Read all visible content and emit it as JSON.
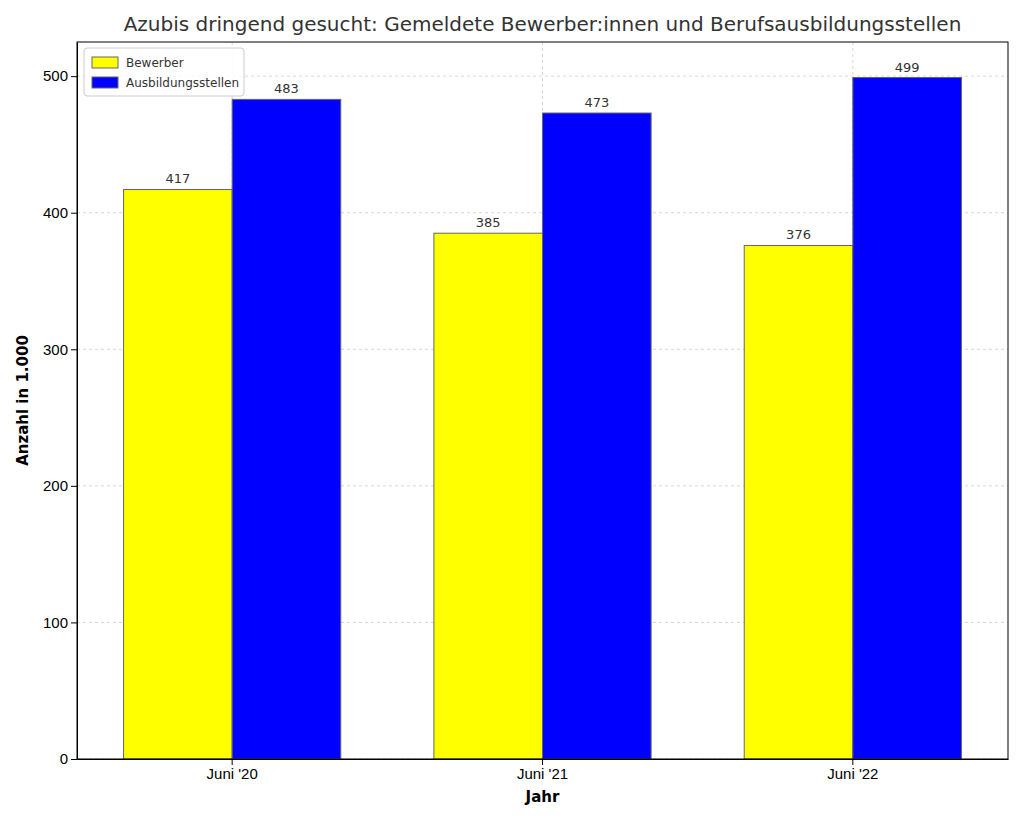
{
  "chart_data": {
    "type": "bar",
    "title": "Azubis dringend gesucht: Gemeldete Bewerber:innen und Berufsausbildungsstellen",
    "x_label": "Jahr",
    "y_label": "Anzahl in 1.000",
    "categories": [
      "Juni '20",
      "Juni '21",
      "Juni '22"
    ],
    "series": [
      {
        "name": "Bewerber",
        "color": "#ffff00",
        "values": [
          417,
          385,
          376
        ]
      },
      {
        "name": "Ausbildungsstellen",
        "color": "#0000ff",
        "values": [
          483,
          473,
          499
        ]
      }
    ],
    "ylim": [
      0,
      525
    ],
    "yticks": [
      0,
      100,
      200,
      300,
      400,
      500
    ],
    "grid": true,
    "legend": "upper left",
    "data_labels": true
  }
}
